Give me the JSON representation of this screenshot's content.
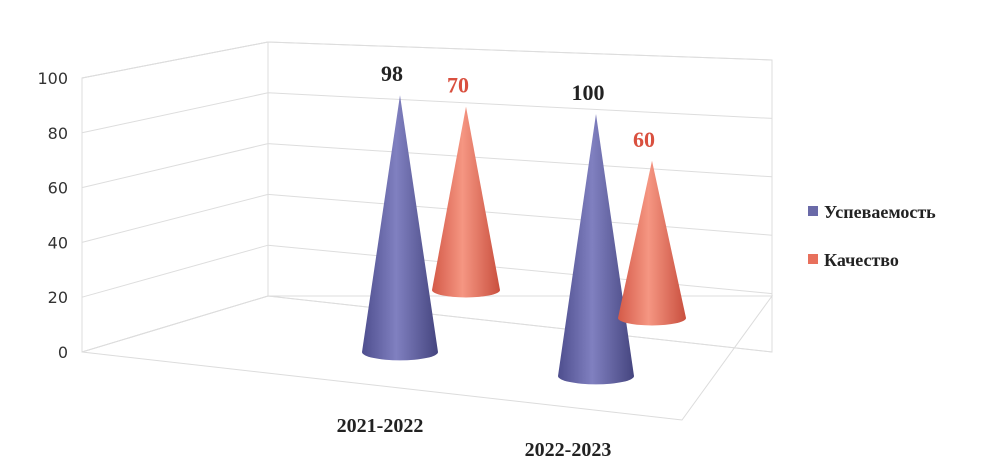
{
  "chart_data": {
    "type": "bar",
    "mark_shape": "3d-cone",
    "categories": [
      "2021-2022",
      "2022-2023"
    ],
    "series": [
      {
        "name": "Успеваемость",
        "values": [
          98,
          100
        ],
        "color": "#6a6aa8",
        "label_color": "#222222"
      },
      {
        "name": "Качество",
        "values": [
          70,
          60
        ],
        "color": "#e8705c",
        "label_color": "#d9503f"
      }
    ],
    "data_labels": {
      "s0": [
        "98",
        "100"
      ],
      "s1": [
        "70",
        "60"
      ]
    },
    "yticks": [
      "0",
      "20",
      "40",
      "60",
      "80",
      "100"
    ],
    "ylim": [
      0,
      100
    ],
    "grid": true,
    "legend_position": "right",
    "title": "",
    "xlabel": "",
    "ylabel": ""
  }
}
